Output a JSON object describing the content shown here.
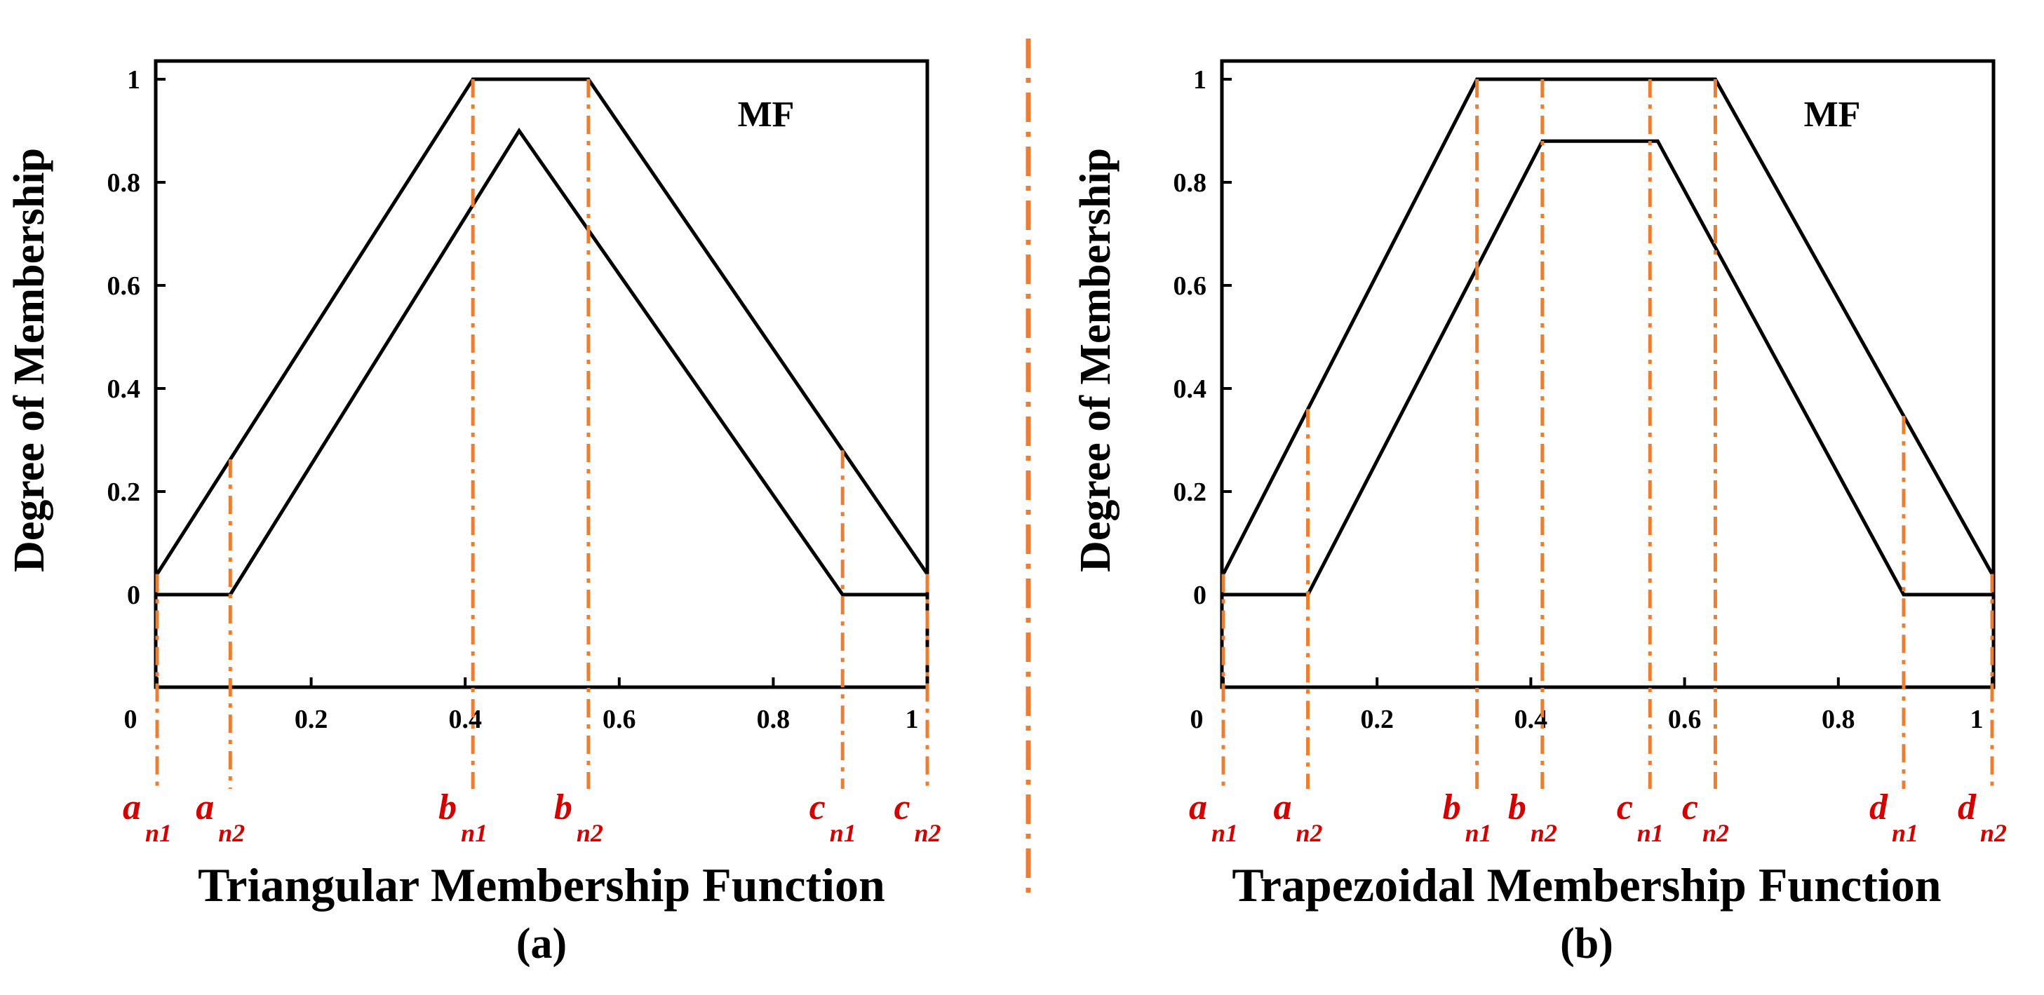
{
  "colors": {
    "curve": "#000000",
    "guide": "#ED7D31",
    "marker_text": "#D40000",
    "divider": "#ED7D31"
  },
  "chart_data": [
    {
      "type": "line",
      "panel_label": "(a)",
      "title": "Triangular Membership Function",
      "ylabel": "Degree of Membership",
      "legend": "MF",
      "legend_position": "top-right",
      "xlim": [
        0,
        1
      ],
      "ylim": [
        -0.2,
        1.03
      ],
      "xticks": [
        {
          "value": 0,
          "label": "0"
        },
        {
          "value": 0.2,
          "label": "0.2"
        },
        {
          "value": 0.4,
          "label": "0.4"
        },
        {
          "value": 0.6,
          "label": "0.6"
        },
        {
          "value": 0.8,
          "label": "0.8"
        },
        {
          "value": 1,
          "label": "1"
        }
      ],
      "yticks": [
        {
          "value": 0,
          "label": "0"
        },
        {
          "value": 0.2,
          "label": "0.2"
        },
        {
          "value": 0.4,
          "label": "0.4"
        },
        {
          "value": 0.6,
          "label": "0.6"
        },
        {
          "value": 0.8,
          "label": "0.8"
        },
        {
          "value": 1,
          "label": "1"
        }
      ],
      "series": [
        {
          "name": "upper MF",
          "x": [
            0,
            0.41,
            0.56,
            1
          ],
          "y": [
            0.04,
            1,
            1,
            0.04
          ]
        },
        {
          "name": "lower MF",
          "x": [
            0,
            0.095,
            0.47,
            0.89,
            1
          ],
          "y": [
            0,
            0,
            0.9,
            0,
            0
          ]
        }
      ],
      "markers": [
        {
          "x": 0,
          "base": "a",
          "sub": "n1"
        },
        {
          "x": 0.095,
          "base": "a",
          "sub": "n2"
        },
        {
          "x": 0.41,
          "base": "b",
          "sub": "n1"
        },
        {
          "x": 0.56,
          "base": "b",
          "sub": "n2"
        },
        {
          "x": 0.89,
          "base": "c",
          "sub": "n1"
        },
        {
          "x": 1,
          "base": "c",
          "sub": "n2"
        }
      ]
    },
    {
      "type": "line",
      "panel_label": "(b)",
      "title": "Trapezoidal Membership Function",
      "ylabel": "Degree of Membership",
      "legend": "MF",
      "legend_position": "top-right",
      "xlim": [
        0,
        1
      ],
      "ylim": [
        -0.2,
        1.03
      ],
      "xticks": [
        {
          "value": 0,
          "label": "0"
        },
        {
          "value": 0.2,
          "label": "0.2"
        },
        {
          "value": 0.4,
          "label": "0.4"
        },
        {
          "value": 0.6,
          "label": "0.6"
        },
        {
          "value": 0.8,
          "label": "0.8"
        },
        {
          "value": 1,
          "label": "1"
        }
      ],
      "yticks": [
        {
          "value": 0,
          "label": "0"
        },
        {
          "value": 0.2,
          "label": "0.2"
        },
        {
          "value": 0.4,
          "label": "0.4"
        },
        {
          "value": 0.6,
          "label": "0.6"
        },
        {
          "value": 0.8,
          "label": "0.8"
        },
        {
          "value": 1,
          "label": "1"
        }
      ],
      "series": [
        {
          "name": "upper MF",
          "x": [
            0,
            0.33,
            0.64,
            1
          ],
          "y": [
            0.04,
            1,
            1,
            0.04
          ]
        },
        {
          "name": "lower MF",
          "x": [
            0,
            0.11,
            0.415,
            0.565,
            0.885,
            1
          ],
          "y": [
            0,
            0,
            0.88,
            0.88,
            0,
            0
          ]
        }
      ],
      "markers": [
        {
          "x": 0,
          "base": "a",
          "sub": "n1"
        },
        {
          "x": 0.11,
          "base": "a",
          "sub": "n2"
        },
        {
          "x": 0.33,
          "base": "b",
          "sub": "n1"
        },
        {
          "x": 0.415,
          "base": "b",
          "sub": "n2"
        },
        {
          "x": 0.555,
          "base": "c",
          "sub": "n1"
        },
        {
          "x": 0.64,
          "base": "c",
          "sub": "n2"
        },
        {
          "x": 0.885,
          "base": "d",
          "sub": "n1"
        },
        {
          "x": 1,
          "base": "d",
          "sub": "n2"
        }
      ]
    }
  ]
}
